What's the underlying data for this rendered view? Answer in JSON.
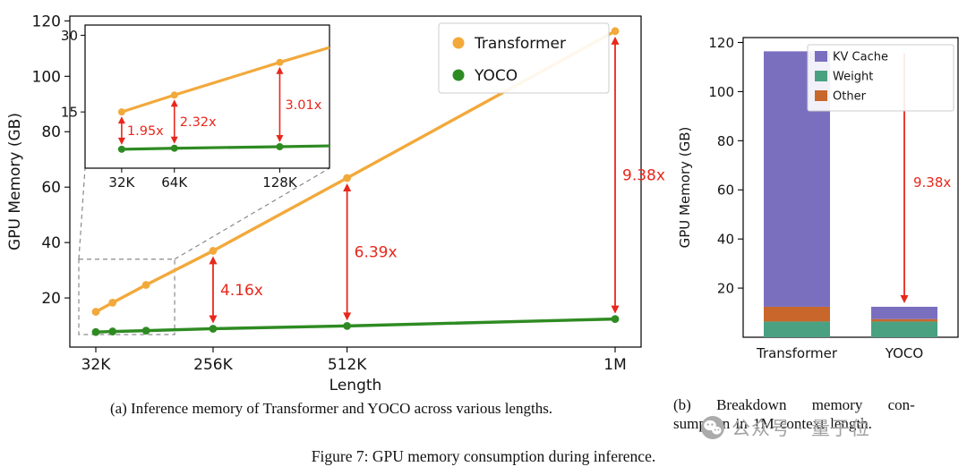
{
  "captions": {
    "a": "(a) Inference memory of Transformer and YOCO across various lengths.",
    "b_line1": "(b) Breakdown memory con-",
    "b_line2": "sumption in 1M context length.",
    "figure": "Figure 7: GPU memory consumption during inference."
  },
  "watermark": {
    "text": "公众号 · 量子位"
  },
  "colors": {
    "transformer": "#F2A93B",
    "yoco": "#2E8B22",
    "kv_cache": "#7A6FBF",
    "weight": "#4AA181",
    "other": "#C8662B",
    "annotation_red": "#E8271B"
  },
  "chart_data": [
    {
      "id": "inference-memory-line",
      "type": "line",
      "xlabel": "Length",
      "ylabel": "GPU Memory (GB)",
      "x_values": [
        32768,
        65536,
        131072,
        262144,
        524288,
        1048576
      ],
      "x_value_labels": [
        "32K",
        "64K",
        "128K",
        "256K",
        "512K",
        "1M"
      ],
      "x_axis_ticks": [
        {
          "value": 32768,
          "label": "32K"
        },
        {
          "value": 262144,
          "label": "256K"
        },
        {
          "value": 524288,
          "label": "512K"
        },
        {
          "value": 1048576,
          "label": "1M"
        }
      ],
      "y_ticks": [
        20,
        40,
        60,
        80,
        100,
        120
      ],
      "series": [
        {
          "name": "Transformer",
          "color": "#F2A93B",
          "values": [
            15.0,
            18.3,
            24.7,
            37.0,
            63.3,
            116.3
          ]
        },
        {
          "name": "YOCO",
          "color": "#2E8B22",
          "values": [
            7.7,
            7.9,
            8.2,
            8.9,
            9.9,
            12.4
          ]
        }
      ],
      "legend": {
        "position": "upper right",
        "entries": [
          "Transformer",
          "YOCO"
        ]
      },
      "ratio_annotations": [
        {
          "x": 262144,
          "label": "4.16x"
        },
        {
          "x": 524288,
          "label": "6.39x"
        },
        {
          "x": 1048576,
          "label": "9.38x"
        }
      ],
      "inset": {
        "x_ticks": [
          {
            "value": 32768,
            "label": "32K"
          },
          {
            "value": 65536,
            "label": "64K"
          },
          {
            "value": 131072,
            "label": "128K"
          }
        ],
        "y_ticks": [
          15,
          30
        ],
        "xlim": [
          10000,
          162000
        ],
        "ylim": [
          4,
          32
        ],
        "ratio_annotations": [
          {
            "x": 32768,
            "label": "1.95x"
          },
          {
            "x": 65536,
            "label": "2.32x"
          },
          {
            "x": 131072,
            "label": "3.01x"
          }
        ],
        "zoom_region": {
          "x0": -500,
          "x1": 187000,
          "y0": 6.8,
          "y1": 34
        }
      },
      "annotation_color": "#E8271B"
    },
    {
      "id": "memory-breakdown-bar",
      "type": "stacked-bar",
      "ylabel": "GPU Memory (GB)",
      "categories": [
        "Transformer",
        "YOCO"
      ],
      "y_ticks": [
        20,
        40,
        60,
        80,
        100,
        120
      ],
      "ylim": [
        0,
        122
      ],
      "series": [
        {
          "name": "Weight",
          "color": "#4AA181",
          "values": [
            6.4,
            6.4
          ]
        },
        {
          "name": "Other",
          "color": "#C8662B",
          "values": [
            6.0,
            1.0
          ]
        },
        {
          "name": "KV Cache",
          "color": "#7A6FBF",
          "values": [
            104.0,
            5.0
          ]
        }
      ],
      "legend": {
        "position": "upper right",
        "entries": [
          "KV Cache",
          "Weight",
          "Other"
        ]
      },
      "annotation": {
        "label": "9.38x",
        "target_category": "YOCO"
      },
      "annotation_color": "#E8271B"
    }
  ]
}
